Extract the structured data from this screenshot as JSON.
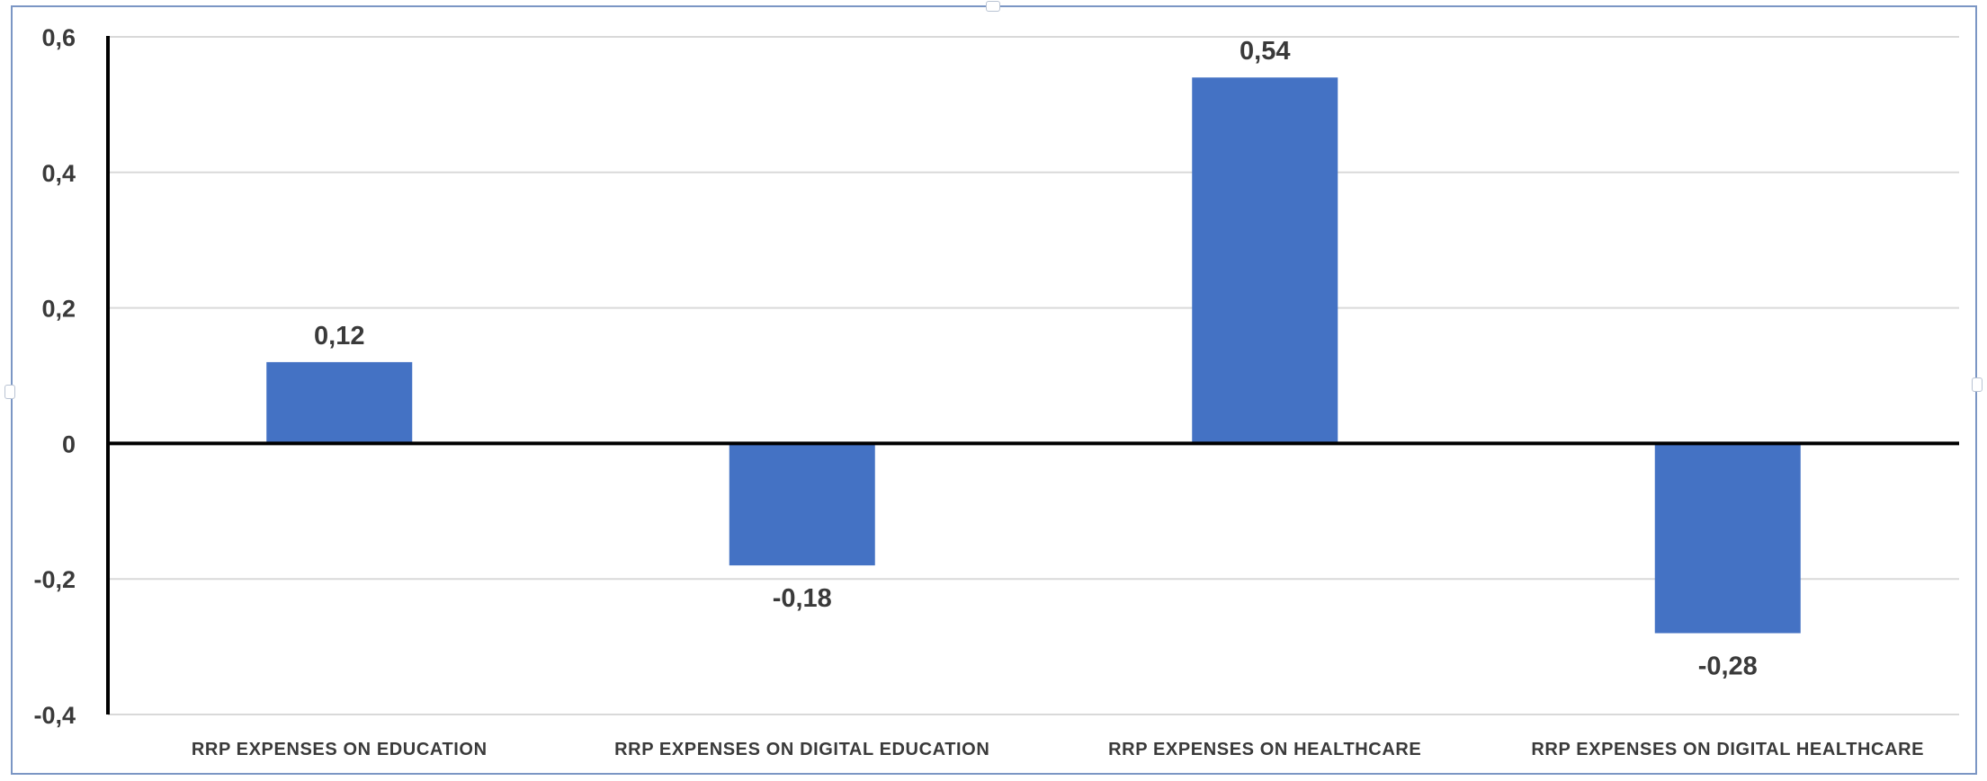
{
  "chart_data": {
    "type": "bar",
    "categories": [
      "RRP EXPENSES ON EDUCATION",
      "RRP EXPENSES ON DIGITAL EDUCATION",
      "RRP EXPENSES ON HEALTHCARE",
      "RRP EXPENSES ON DIGITAL HEALTHCARE"
    ],
    "values": [
      0.12,
      -0.18,
      0.54,
      -0.28
    ],
    "data_labels": [
      "0,12",
      "-0,18",
      "0,54",
      "-0,28"
    ],
    "yticks": [
      -0.4,
      -0.2,
      0,
      0.2,
      0.4,
      0.6
    ],
    "ytick_labels": [
      "-0,4",
      "-0,2",
      "0",
      "0,2",
      "0,4",
      "0,6"
    ],
    "ylim": [
      -0.4,
      0.6
    ],
    "title": "",
    "xlabel": "",
    "ylabel": "",
    "grid": true,
    "legend": "none",
    "colors": {
      "bar": "#4472c4",
      "gridline": "#d9d9d9",
      "axis": "#000000",
      "text": "#3a3a3a",
      "frame": "#7b96c4"
    }
  }
}
